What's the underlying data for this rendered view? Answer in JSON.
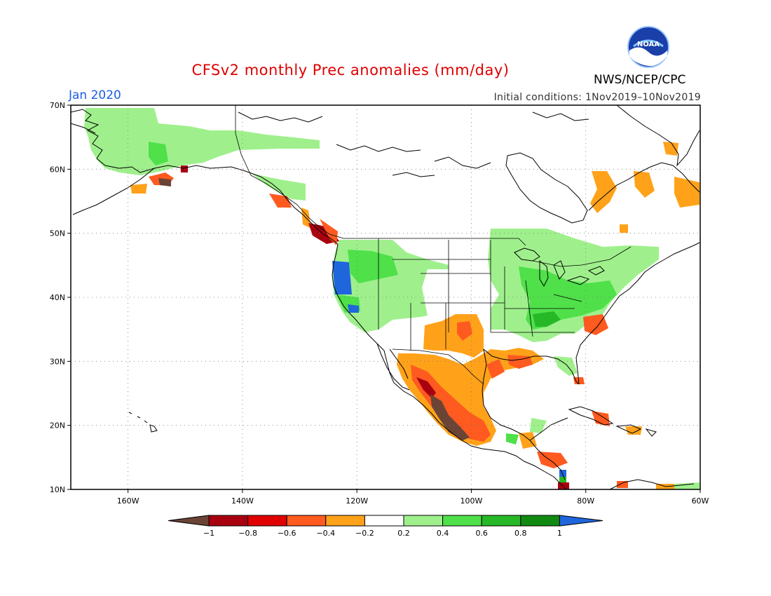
{
  "header": {
    "title": "CFSv2 monthly Prec anomalies (mm/day)",
    "valid_month": "Jan 2020",
    "initial_conditions": "Initial conditions: 1Nov2019–10Nov2019",
    "org": "NWS/NCEP/CPC",
    "logo_text": "NOAA"
  },
  "axes": {
    "lat_labels": [
      "70N",
      "60N",
      "50N",
      "40N",
      "30N",
      "20N",
      "10N"
    ],
    "lon_labels": [
      "160W",
      "140W",
      "120W",
      "100W",
      "80W",
      "60W"
    ],
    "lat_range": [
      10,
      70
    ],
    "lon_range": [
      -170,
      -60
    ]
  },
  "legend": {
    "labels": [
      "−1",
      "−0.8",
      "−0.6",
      "−0.4",
      "−0.2",
      "0.2",
      "0.4",
      "0.6",
      "0.8",
      "1"
    ],
    "colors": [
      "#6b4436",
      "#a8000f",
      "#e00000",
      "#ff5a1f",
      "#ffa21a",
      "#ffffff",
      "#9ff08c",
      "#4fe04a",
      "#26b826",
      "#118a11",
      "#1f66dd"
    ]
  },
  "palette": {
    "wet_light": "#9ff08c",
    "wet_mid": "#4fe04a",
    "wet_strong": "#26b826",
    "wet_extreme": "#1f66dd",
    "dry_light": "#ffa21a",
    "dry_mid": "#ff5a1f",
    "dry_strong": "#a8000f",
    "dry_extreme": "#6b4436"
  }
}
